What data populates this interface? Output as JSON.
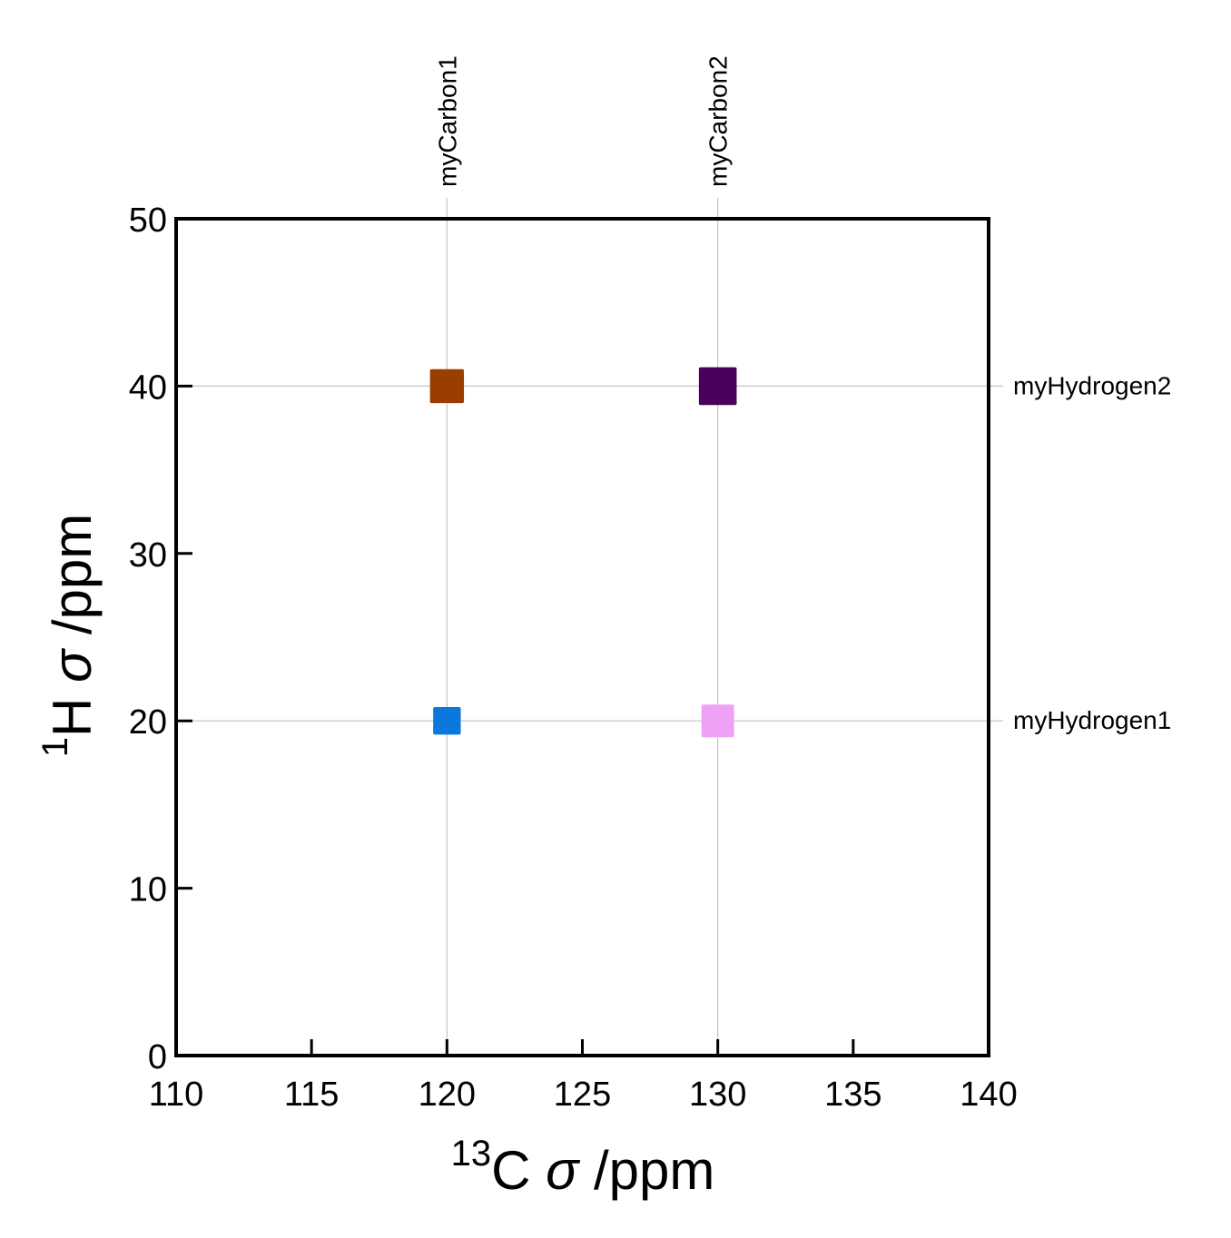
{
  "chart_data": {
    "type": "scatter",
    "xlabel": {
      "superscript": "13",
      "element": "C",
      "symbol": "σ",
      "unit": "/ppm"
    },
    "ylabel": {
      "superscript": "1",
      "element": "H",
      "symbol": "σ",
      "unit": "/ppm"
    },
    "xlim": [
      110,
      140
    ],
    "ylim": [
      0,
      50
    ],
    "x_ticks": [
      110,
      115,
      120,
      125,
      130,
      135,
      140
    ],
    "y_ticks": [
      0,
      10,
      20,
      30,
      40,
      50
    ],
    "grid": "at labelled shifts only",
    "top_labels": [
      {
        "label": "myCarbon1",
        "x": 120
      },
      {
        "label": "myCarbon2",
        "x": 130
      }
    ],
    "right_labels": [
      {
        "label": "myHydrogen1",
        "y": 20
      },
      {
        "label": "myHydrogen2",
        "y": 40
      }
    ],
    "points": [
      {
        "x": 120,
        "y": 20,
        "color": "#0a78dc",
        "weight": 0.55
      },
      {
        "x": 130,
        "y": 20,
        "color": "#eea2f6",
        "weight": 0.75
      },
      {
        "x": 120,
        "y": 40,
        "color": "#9a3e00",
        "weight": 0.8
      },
      {
        "x": 130,
        "y": 40,
        "color": "#4a005a",
        "weight": 0.95
      }
    ],
    "marker": "square"
  }
}
